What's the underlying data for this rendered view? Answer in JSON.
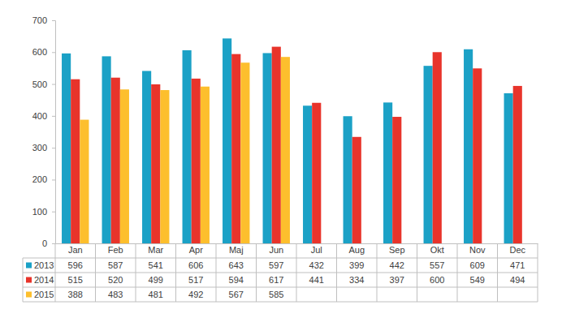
{
  "chart_data": {
    "type": "bar",
    "categories": [
      "Jan",
      "Feb",
      "Mar",
      "Apr",
      "Maj",
      "Jun",
      "Jul",
      "Aug",
      "Sep",
      "Okt",
      "Nov",
      "Dec"
    ],
    "series": [
      {
        "name": "2013",
        "color": "#1ba1c6",
        "values": [
          596,
          587,
          541,
          606,
          643,
          597,
          432,
          399,
          442,
          557,
          609,
          471
        ]
      },
      {
        "name": "2014",
        "color": "#e8342b",
        "values": [
          515,
          520,
          499,
          517,
          594,
          617,
          441,
          334,
          397,
          600,
          549,
          494
        ]
      },
      {
        "name": "2015",
        "color": "#fdbf2d",
        "values": [
          388,
          483,
          481,
          492,
          567,
          585,
          null,
          null,
          null,
          null,
          null,
          null
        ]
      }
    ],
    "ylim": [
      0,
      700
    ],
    "yticks": [
      0,
      100,
      200,
      300,
      400,
      500,
      600,
      700
    ],
    "grid": false
  }
}
